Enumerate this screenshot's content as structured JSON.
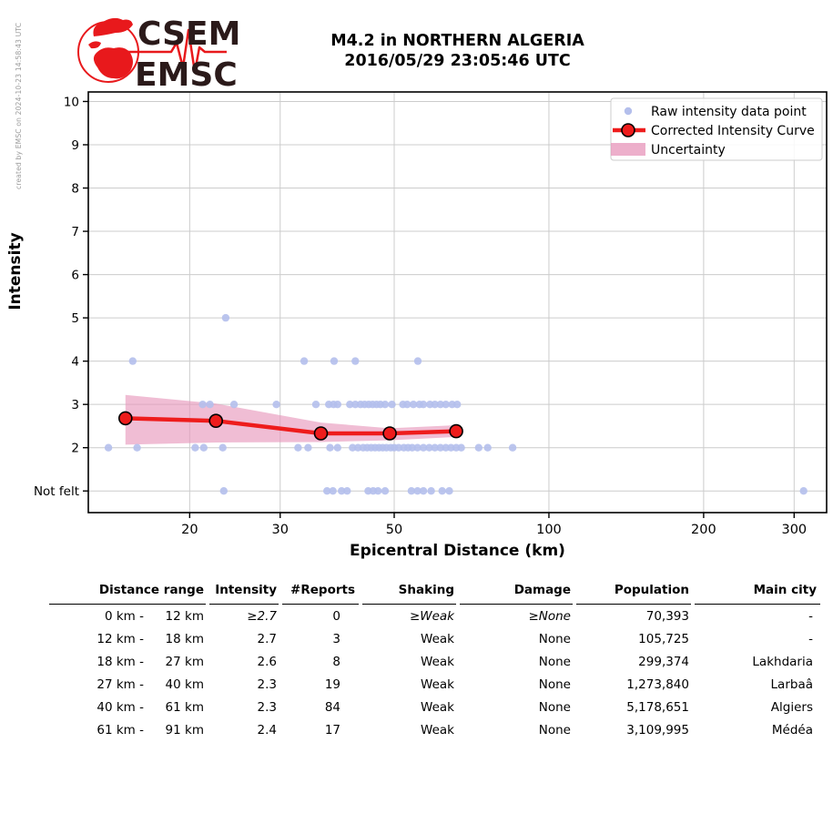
{
  "meta": {
    "created_by": "created by EMSC on 2024-10-23 14:58:43 UTC"
  },
  "logo": {
    "line1": "CSEM",
    "line2": "EMSC",
    "red": "#e8191c",
    "dark": "#2b1a1a"
  },
  "title": {
    "line1": "M4.2 in NORTHERN ALGERIA",
    "line2": "2016/05/29 23:05:46 UTC"
  },
  "chart_data": {
    "type": "scatter",
    "title": "M4.2 in NORTHERN ALGERIA 2016/05/29 23:05:46 UTC",
    "xlabel": "Epicentral Distance (km)",
    "ylabel": "Intensity",
    "x_scale": "log",
    "x_range": [
      12.7,
      347
    ],
    "y_range": [
      0.5,
      10.22
    ],
    "x_ticks": [
      20,
      30,
      50,
      100,
      200,
      300
    ],
    "y_ticks": [
      {
        "value": 1,
        "label": "Not felt"
      },
      {
        "value": 2,
        "label": "2"
      },
      {
        "value": 3,
        "label": "3"
      },
      {
        "value": 4,
        "label": "4"
      },
      {
        "value": 5,
        "label": "5"
      },
      {
        "value": 6,
        "label": "6"
      },
      {
        "value": 7,
        "label": "7"
      },
      {
        "value": 8,
        "label": "8"
      },
      {
        "value": 9,
        "label": "9"
      },
      {
        "value": 10,
        "label": "10"
      }
    ],
    "grid": true,
    "legend": {
      "position": "upper right",
      "items": [
        {
          "type": "dot",
          "label": "Raw intensity data point"
        },
        {
          "type": "line-marker",
          "label": "Corrected Intensity Curve"
        },
        {
          "type": "patch",
          "label": "Uncertainty"
        }
      ]
    },
    "raw_points": [
      {
        "intensity": 5,
        "distances": [
          23.5
        ]
      },
      {
        "intensity": 4,
        "distances": [
          15.5,
          33.4,
          38.2,
          42,
          55.6
        ]
      },
      {
        "intensity": 3,
        "distances": [
          21.2,
          21.9,
          24.4,
          29.5,
          35.2,
          37.3,
          38.1,
          38.8,
          41,
          42,
          43,
          43.8,
          44.6,
          45.4,
          46.2,
          47,
          48,
          49.5,
          52,
          53,
          54.5,
          56,
          57,
          58.7,
          60,
          61.5,
          63,
          64.8,
          66.3
        ]
      },
      {
        "intensity": 2,
        "distances": [
          13.9,
          15.8,
          20.5,
          21.3,
          23.2,
          32.5,
          34,
          37.5,
          38.8,
          41.5,
          42.5,
          43.5,
          44.3,
          45.1,
          45.9,
          46.7,
          47.5,
          48.3,
          49.2,
          50,
          51,
          52.2,
          53.2,
          54.2,
          55.5,
          57,
          58.5,
          60,
          61.5,
          63,
          64.5,
          66,
          67.5,
          73,
          76,
          85
        ]
      },
      {
        "intensity": 1,
        "distances": [
          23.3,
          37,
          38,
          39.5,
          40.5,
          44.5,
          45.5,
          46.5,
          48,
          54,
          55.5,
          57,
          59,
          62,
          64,
          313
        ]
      }
    ],
    "corrected_curve": [
      [
        15,
        2.68
      ],
      [
        22.5,
        2.62
      ],
      [
        36,
        2.33
      ],
      [
        49,
        2.33
      ],
      [
        66,
        2.38
      ]
    ],
    "uncertainty_upper": [
      [
        15,
        3.22
      ],
      [
        22.5,
        3.02
      ],
      [
        36,
        2.58
      ],
      [
        49,
        2.45
      ],
      [
        66,
        2.52
      ]
    ],
    "uncertainty_lower": [
      [
        15,
        2.07
      ],
      [
        22.5,
        2.12
      ],
      [
        36,
        2.13
      ],
      [
        49,
        2.17
      ],
      [
        66,
        2.25
      ]
    ],
    "colors": {
      "raw_point": "#b4bfec",
      "curve": "#ee1c1c",
      "marker_edge": "#000000",
      "uncertainty": "#e794b9",
      "grid": "#cccccc",
      "frame": "#000000",
      "legend_border": "#cccccc"
    }
  },
  "table": {
    "headers": [
      "Distance range",
      "Intensity",
      "#Reports",
      "Shaking",
      "Damage",
      "Population",
      "Main city"
    ],
    "rows": [
      {
        "range_from": "0 km -",
        "range_to": "12 km",
        "intensity": "≥2.7",
        "reports": "0",
        "shaking": "≥Weak",
        "damage": "≥None",
        "population": "70,393",
        "main_city": "-"
      },
      {
        "range_from": "12 km -",
        "range_to": "18 km",
        "intensity": "2.7",
        "reports": "3",
        "shaking": "Weak",
        "damage": "None",
        "population": "105,725",
        "main_city": "-"
      },
      {
        "range_from": "18 km -",
        "range_to": "27 km",
        "intensity": "2.6",
        "reports": "8",
        "shaking": "Weak",
        "damage": "None",
        "population": "299,374",
        "main_city": "Lakhdaria"
      },
      {
        "range_from": "27 km -",
        "range_to": "40 km",
        "intensity": "2.3",
        "reports": "19",
        "shaking": "Weak",
        "damage": "None",
        "population": "1,273,840",
        "main_city": "Larbaâ"
      },
      {
        "range_from": "40 km -",
        "range_to": "61 km",
        "intensity": "2.3",
        "reports": "84",
        "shaking": "Weak",
        "damage": "None",
        "population": "5,178,651",
        "main_city": "Algiers"
      },
      {
        "range_from": "61 km -",
        "range_to": "91 km",
        "intensity": "2.4",
        "reports": "17",
        "shaking": "Weak",
        "damage": "None",
        "population": "3,109,995",
        "main_city": "Médéa"
      }
    ]
  }
}
